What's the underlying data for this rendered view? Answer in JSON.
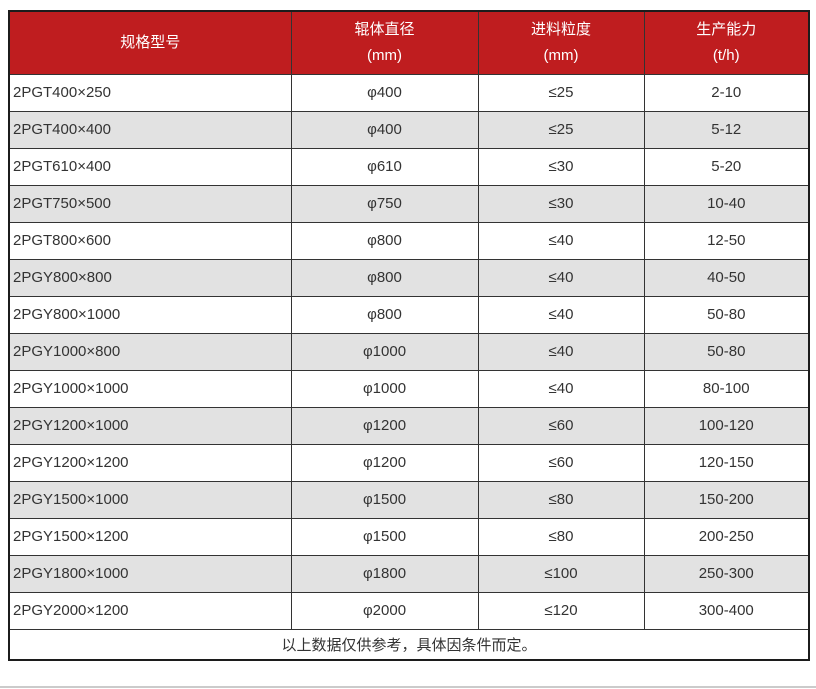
{
  "colors": {
    "header_bg": "#bf1d1f",
    "header_text": "#ffffff",
    "row_alt_bg": "#e2e2e2",
    "row_bg": "#ffffff",
    "border": "#333333",
    "outer_border": "#1c1c1c",
    "body_text": "#333333"
  },
  "table": {
    "columns": [
      {
        "line1": "规格型号",
        "line2": ""
      },
      {
        "line1": "辊体直径",
        "line2": "(mm)"
      },
      {
        "line1": "进料粒度",
        "line2": "(mm)"
      },
      {
        "line1": "生产能力",
        "line2": "(t/h)"
      }
    ],
    "rows": [
      [
        "2PGT400×250",
        "φ400",
        "≤25",
        "2-10"
      ],
      [
        "2PGT400×400",
        "φ400",
        "≤25",
        "5-12"
      ],
      [
        "2PGT610×400",
        "φ610",
        "≤30",
        "5-20"
      ],
      [
        "2PGT750×500",
        "φ750",
        "≤30",
        "10-40"
      ],
      [
        "2PGT800×600",
        "φ800",
        "≤40",
        "12-50"
      ],
      [
        "2PGY800×800",
        "φ800",
        "≤40",
        "40-50"
      ],
      [
        "2PGY800×1000",
        "φ800",
        "≤40",
        "50-80"
      ],
      [
        "2PGY1000×800",
        "φ1000",
        "≤40",
        "50-80"
      ],
      [
        "2PGY1000×1000",
        "φ1000",
        "≤40",
        "80-100"
      ],
      [
        "2PGY1200×1000",
        "φ1200",
        "≤60",
        "100-120"
      ],
      [
        "2PGY1200×1200",
        "φ1200",
        "≤60",
        "120-150"
      ],
      [
        "2PGY1500×1000",
        "φ1500",
        "≤80",
        "150-200"
      ],
      [
        "2PGY1500×1200",
        "φ1500",
        "≤80",
        "200-250"
      ],
      [
        "2PGY1800×1000",
        "φ1800",
        "≤100",
        "250-300"
      ],
      [
        "2PGY2000×1200",
        "φ2000",
        "≤120",
        "300-400"
      ]
    ],
    "footnote": "以上数据仅供参考，具体因条件而定。"
  }
}
